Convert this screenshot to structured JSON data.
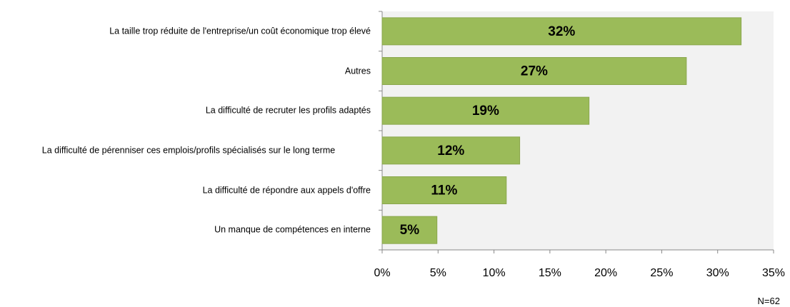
{
  "chart_data": {
    "type": "barh",
    "categories": [
      "La taille trop réduite de l'entreprise/un coût économique trop élevé",
      "Autres",
      "La difficulté de recruter les profils adaptés",
      "La difficulté de pérenniser ces emplois/profils spécialisés sur le long terme",
      "La difficulté de répondre aux appels d'offre",
      "Un manque de compétences en interne"
    ],
    "values": [
      32.1,
      27.2,
      18.5,
      12.3,
      11.1,
      4.9
    ],
    "value_labels": [
      "32%",
      "27%",
      "19%",
      "12%",
      "11%",
      "5%"
    ],
    "color": "#9bbb59",
    "xlim": [
      0,
      35
    ],
    "xticks": [
      {
        "value": 0,
        "label": "0%"
      },
      {
        "value": 5,
        "label": "5%"
      },
      {
        "value": 10,
        "label": "10%"
      },
      {
        "value": 15,
        "label": "15%"
      },
      {
        "value": 20,
        "label": "20%"
      },
      {
        "value": 25,
        "label": "25%"
      },
      {
        "value": 30,
        "label": "30%"
      },
      {
        "value": 35,
        "label": "35%"
      }
    ],
    "annotation": "N=62"
  }
}
